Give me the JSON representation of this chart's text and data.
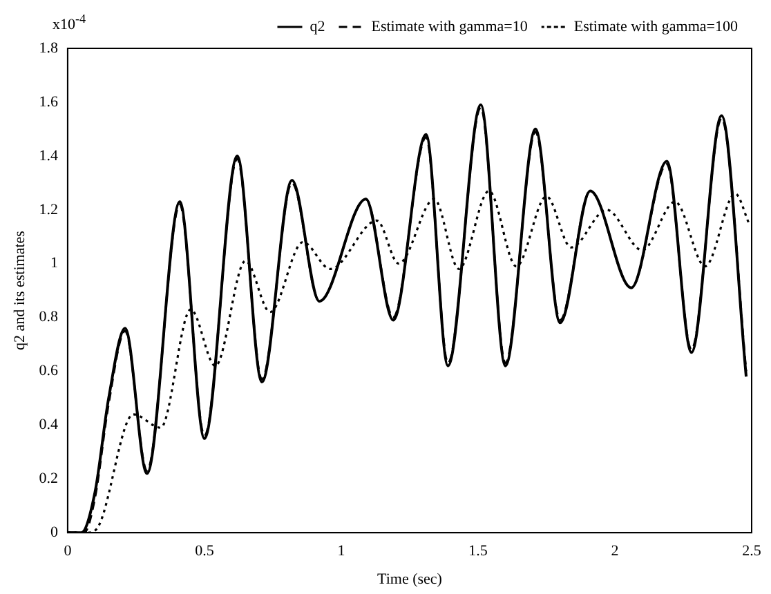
{
  "chart_data": {
    "type": "line",
    "xlabel": "Time (sec)",
    "ylabel": "q2 and its estimates",
    "annotations": [
      "x10$^{-4}$"
    ],
    "xlim": [
      0,
      2.5
    ],
    "xticks": [
      0,
      0.5,
      1,
      1.5,
      2,
      2.5
    ],
    "ylim": [
      0,
      1.8
    ],
    "yticks": [
      0,
      0.2,
      0.4,
      0.6,
      0.8,
      1,
      1.2,
      1.4,
      1.6,
      1.8
    ],
    "grid": false,
    "legend": "top",
    "marker": "none",
    "series": [
      {
        "name": "q2",
        "color": "#000000",
        "line_style": "solid",
        "x": [
          0,
          0.05,
          0.1,
          0.15,
          0.21,
          0.29,
          0.41,
          0.5,
          0.62,
          0.71,
          0.82,
          0.92,
          1.09,
          1.19,
          1.31,
          1.39,
          1.51,
          1.6,
          1.71,
          1.8,
          1.91,
          2.06,
          2.19,
          2.28,
          2.39,
          2.48
        ],
        "values": [
          0,
          0,
          0.15,
          0.5,
          0.76,
          0.22,
          1.23,
          0.35,
          1.4,
          0.56,
          1.31,
          0.86,
          1.24,
          0.79,
          1.48,
          0.62,
          1.59,
          0.62,
          1.5,
          0.78,
          1.27,
          0.91,
          1.38,
          0.67,
          1.55,
          0.58
        ]
      },
      {
        "name": "Estimate with gamma=10",
        "color": "#000000",
        "line_style": "dashed",
        "x": [
          0,
          0.06,
          0.1,
          0.15,
          0.21,
          0.29,
          0.41,
          0.5,
          0.62,
          0.71,
          0.82,
          0.92,
          1.09,
          1.19,
          1.31,
          1.39,
          1.51,
          1.6,
          1.71,
          1.8,
          1.91,
          2.06,
          2.19,
          2.28,
          2.39,
          2.48
        ],
        "values": [
          0,
          0,
          0.13,
          0.48,
          0.75,
          0.23,
          1.22,
          0.36,
          1.39,
          0.57,
          1.3,
          0.86,
          1.24,
          0.8,
          1.47,
          0.63,
          1.58,
          0.63,
          1.49,
          0.79,
          1.27,
          0.91,
          1.37,
          0.68,
          1.54,
          0.6
        ]
      },
      {
        "name": "Estimate with gamma=100",
        "color": "#000000",
        "line_style": "dotted",
        "x": [
          0,
          0.07,
          0.107,
          0.24,
          0.34,
          0.45,
          0.54,
          0.65,
          0.74,
          0.86,
          0.96,
          1.13,
          1.21,
          1.34,
          1.43,
          1.54,
          1.64,
          1.75,
          1.84,
          1.97,
          2.1,
          2.22,
          2.33,
          2.44,
          2.49
        ],
        "values": [
          0,
          0,
          0.015,
          0.44,
          0.39,
          0.83,
          0.62,
          1.01,
          0.82,
          1.08,
          0.98,
          1.16,
          1,
          1.24,
          0.98,
          1.27,
          0.99,
          1.25,
          1.06,
          1.2,
          1.05,
          1.23,
          0.99,
          1.26,
          1.15
        ]
      }
    ]
  }
}
